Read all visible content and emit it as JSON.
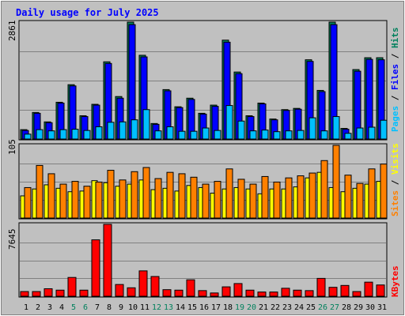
{
  "title": "Daily usage for July 2025",
  "colors": {
    "background": "#c0c0c0",
    "title": "#0000ff",
    "hits": "#00805c",
    "files": "#0000ff",
    "pages": "#00c0ff",
    "visits": "#ffff00",
    "sites": "#ff8000",
    "kbytes": "#ff0000",
    "weekday_label": "#000000",
    "weekend_label": "#00805c"
  },
  "legend": {
    "pages": "Pages",
    "files": "Files",
    "hits": "Hits",
    "sites": "Sites",
    "visits": "Visits",
    "kbytes": "KBytes",
    "sep": " / "
  },
  "chart_data": [
    {
      "type": "bar",
      "panel": "hits-files-pages",
      "ymax_label": "2861",
      "ylim": [
        0,
        2861
      ],
      "categories": [
        "1",
        "2",
        "3",
        "4",
        "5",
        "6",
        "7",
        "8",
        "9",
        "10",
        "11",
        "12",
        "13",
        "14",
        "15",
        "16",
        "17",
        "18",
        "19",
        "20",
        "21",
        "22",
        "23",
        "24",
        "25",
        "26",
        "27",
        "28",
        "29",
        "30",
        "31"
      ],
      "series": [
        {
          "name": "Hits",
          "values": [
            230,
            650,
            420,
            900,
            1330,
            570,
            850,
            1890,
            1040,
            2861,
            2050,
            380,
            1210,
            790,
            1000,
            630,
            830,
            2420,
            1640,
            570,
            880,
            490,
            720,
            750,
            1940,
            1190,
            2861,
            260,
            1700,
            1990,
            1990
          ]
        },
        {
          "name": "Files",
          "values": [
            210,
            630,
            400,
            880,
            1300,
            550,
            830,
            1850,
            1000,
            2800,
            2010,
            360,
            1180,
            770,
            970,
            610,
            800,
            2370,
            1600,
            550,
            860,
            470,
            700,
            730,
            1900,
            1160,
            2800,
            240,
            1660,
            1950,
            1940
          ]
        },
        {
          "name": "Pages",
          "values": [
            120,
            230,
            200,
            230,
            240,
            210,
            300,
            410,
            420,
            470,
            720,
            200,
            300,
            190,
            190,
            270,
            210,
            820,
            440,
            200,
            220,
            180,
            200,
            210,
            520,
            200,
            550,
            140,
            270,
            290,
            460
          ]
        }
      ]
    },
    {
      "type": "bar",
      "panel": "visits-sites",
      "ymax_label": "105",
      "ylim": [
        0,
        105
      ],
      "categories": [
        "1",
        "2",
        "3",
        "4",
        "5",
        "6",
        "7",
        "8",
        "9",
        "10",
        "11",
        "12",
        "13",
        "14",
        "15",
        "16",
        "17",
        "18",
        "19",
        "20",
        "21",
        "22",
        "23",
        "24",
        "25",
        "26",
        "27",
        "28",
        "29",
        "30",
        "31"
      ],
      "series": [
        {
          "name": "Visits",
          "values": [
            32,
            42,
            48,
            43,
            38,
            39,
            54,
            51,
            46,
            49,
            55,
            41,
            43,
            39,
            47,
            44,
            36,
            42,
            44,
            42,
            35,
            42,
            42,
            45,
            58,
            66,
            44,
            38,
            43,
            49,
            53
          ]
        },
        {
          "name": "Sites",
          "values": [
            44,
            76,
            64,
            49,
            53,
            46,
            52,
            69,
            55,
            67,
            73,
            57,
            66,
            64,
            59,
            49,
            53,
            71,
            56,
            49,
            60,
            52,
            58,
            61,
            65,
            83,
            105,
            62,
            50,
            71,
            78
          ]
        }
      ]
    },
    {
      "type": "bar",
      "panel": "kbytes",
      "ymax_label": "7645",
      "ylim": [
        0,
        7645
      ],
      "categories": [
        "1",
        "2",
        "3",
        "4",
        "5",
        "6",
        "7",
        "8",
        "9",
        "10",
        "11",
        "12",
        "13",
        "14",
        "15",
        "16",
        "17",
        "18",
        "19",
        "20",
        "21",
        "22",
        "23",
        "24",
        "25",
        "26",
        "27",
        "28",
        "29",
        "30",
        "31"
      ],
      "series": [
        {
          "name": "KBytes",
          "values": [
            500,
            500,
            800,
            650,
            2000,
            650,
            6000,
            7645,
            1250,
            900,
            2700,
            2100,
            700,
            650,
            1750,
            600,
            350,
            1000,
            1350,
            650,
            450,
            450,
            850,
            650,
            600,
            1900,
            950,
            1150,
            500,
            1500,
            1200
          ]
        }
      ]
    }
  ],
  "x_labels": [
    {
      "text": "1",
      "weekend": false
    },
    {
      "text": "2",
      "weekend": false
    },
    {
      "text": "3",
      "weekend": false
    },
    {
      "text": "4",
      "weekend": false
    },
    {
      "text": "5",
      "weekend": true
    },
    {
      "text": "6",
      "weekend": true
    },
    {
      "text": "7",
      "weekend": false
    },
    {
      "text": "8",
      "weekend": false
    },
    {
      "text": "9",
      "weekend": false
    },
    {
      "text": "10",
      "weekend": false
    },
    {
      "text": "11",
      "weekend": false
    },
    {
      "text": "12",
      "weekend": true
    },
    {
      "text": "13",
      "weekend": true
    },
    {
      "text": "14",
      "weekend": false
    },
    {
      "text": "15",
      "weekend": false
    },
    {
      "text": "16",
      "weekend": false
    },
    {
      "text": "17",
      "weekend": false
    },
    {
      "text": "18",
      "weekend": false
    },
    {
      "text": "19",
      "weekend": true
    },
    {
      "text": "20",
      "weekend": true
    },
    {
      "text": "21",
      "weekend": false
    },
    {
      "text": "22",
      "weekend": false
    },
    {
      "text": "23",
      "weekend": false
    },
    {
      "text": "24",
      "weekend": false
    },
    {
      "text": "25",
      "weekend": false
    },
    {
      "text": "26",
      "weekend": true
    },
    {
      "text": "27",
      "weekend": true
    },
    {
      "text": "28",
      "weekend": false
    },
    {
      "text": "29",
      "weekend": false
    },
    {
      "text": "30",
      "weekend": false
    },
    {
      "text": "31",
      "weekend": false
    }
  ]
}
